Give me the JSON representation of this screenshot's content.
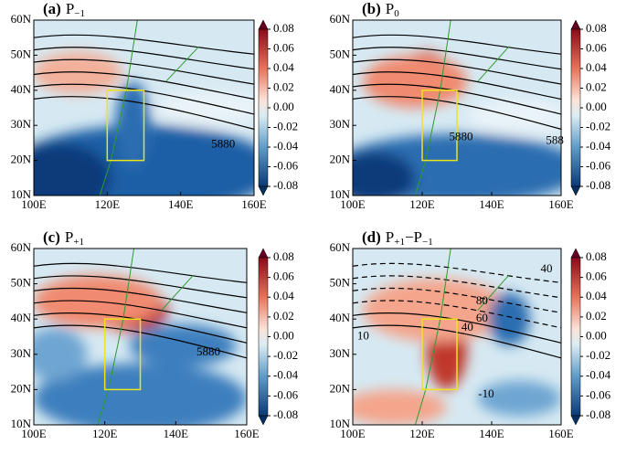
{
  "panels": [
    {
      "label": "(a)",
      "title": "P",
      "subscript": "−1",
      "contour_labels": [
        "5880"
      ]
    },
    {
      "label": "(b)",
      "title": "P",
      "subscript": "0",
      "contour_labels": [
        "5880",
        "588"
      ]
    },
    {
      "label": "(c)",
      "title": "P",
      "subscript": "+1",
      "contour_labels": [
        "5880"
      ]
    },
    {
      "label": "(d)",
      "title": "P",
      "subscript": "+1",
      "title2": "−P",
      "subscript2": "−1",
      "contour_labels": [
        "40",
        "10",
        "80",
        "60",
        "40",
        "-10"
      ]
    }
  ],
  "xticks": [
    {
      "value": 100,
      "label": "100E"
    },
    {
      "value": 120,
      "label": "120E"
    },
    {
      "value": 140,
      "label": "140E"
    },
    {
      "value": 160,
      "label": "160E"
    }
  ],
  "yticks": [
    {
      "value": 10,
      "label": "10N"
    },
    {
      "value": 20,
      "label": "20N"
    },
    {
      "value": 30,
      "label": "30N"
    },
    {
      "value": 40,
      "label": "40N"
    },
    {
      "value": 50,
      "label": "50N"
    },
    {
      "value": 60,
      "label": "60N"
    }
  ],
  "colorbar_ticks": [
    0.08,
    0.06,
    0.04,
    0.02,
    {
      "value": 0,
      "label": "0.00"
    },
    -0.02,
    -0.04,
    -0.06,
    -0.08
  ]
}
